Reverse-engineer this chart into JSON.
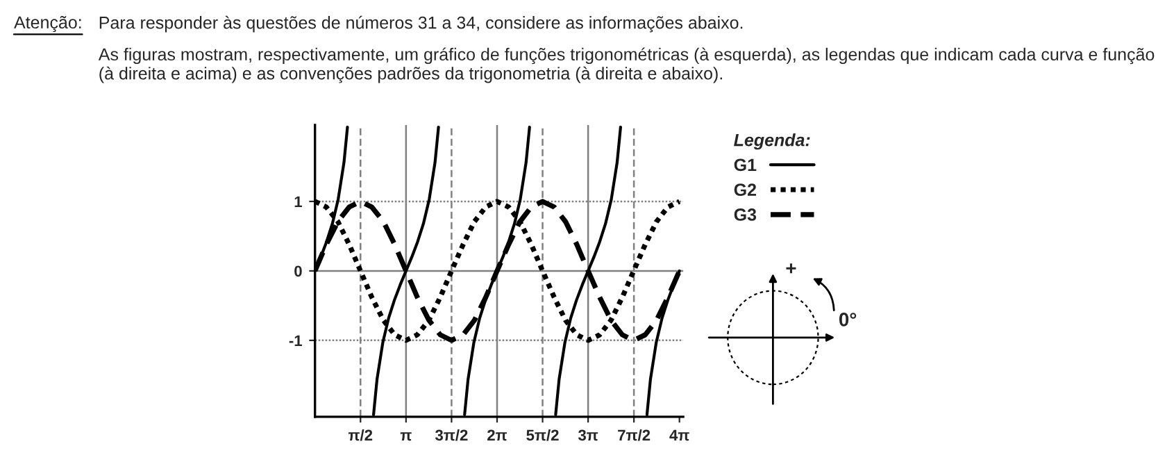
{
  "chart_data": {
    "type": "line",
    "title": "Atenção:",
    "subtitle": "Para responder às questões de números 31 a 34, considere as informações abaixo.",
    "annotations": [
      "As figuras mostram, respectivamente, um gráfico de funções trigonométricas (à esquerda), as legendas que indicam cada curva e função (à direita e acima) e as convenções padrões da trigonometria (à direita e abaixo).",
      "+",
      "0°"
    ],
    "legend_title": "Legenda:",
    "legend": "right",
    "xlim": [
      0,
      12.7
    ],
    "ylim": [
      -2.1,
      2.1
    ],
    "xticks": [
      {
        "value": 1.57,
        "label": "π/2"
      },
      {
        "value": 3.14,
        "label": "π"
      },
      {
        "value": 4.71,
        "label": "3π/2"
      },
      {
        "value": 6.28,
        "label": "2π"
      },
      {
        "value": 7.85,
        "label": "5π/2"
      },
      {
        "value": 9.42,
        "label": "3π"
      },
      {
        "value": 11.0,
        "label": "7π/2"
      },
      {
        "value": 12.57,
        "label": "4π"
      }
    ],
    "yticks": [
      -1,
      0,
      1
    ],
    "ref_lines": [
      {
        "axis": "y",
        "value": 1,
        "color": "#808080",
        "line_style": "dotted"
      },
      {
        "axis": "y",
        "value": -1,
        "color": "#808080",
        "line_style": "dotted"
      },
      {
        "axis": "y",
        "value": 0,
        "color": "#808080",
        "line_style": "solid"
      },
      {
        "axis": "x",
        "value": 1.57,
        "color": "#808080",
        "line_style": "dashed"
      },
      {
        "axis": "x",
        "value": 3.14,
        "color": "#808080",
        "line_style": "solid"
      },
      {
        "axis": "x",
        "value": 4.71,
        "color": "#808080",
        "line_style": "dashed"
      },
      {
        "axis": "x",
        "value": 6.28,
        "color": "#808080",
        "line_style": "solid"
      },
      {
        "axis": "x",
        "value": 7.85,
        "color": "#808080",
        "line_style": "dashed"
      },
      {
        "axis": "x",
        "value": 9.42,
        "color": "#808080",
        "line_style": "solid"
      },
      {
        "axis": "x",
        "value": 11.0,
        "color": "#808080",
        "line_style": "dashed"
      }
    ],
    "series": [
      {
        "name": "G1",
        "color": "#000000",
        "line_style": "solid",
        "x": [
          0,
          0.2,
          0.4,
          0.6,
          0.8,
          1.0,
          1.12,
          1.57,
          2.02,
          2.14,
          2.34,
          2.54,
          2.74,
          2.94,
          3.14,
          3.34,
          3.54,
          3.74,
          3.94,
          4.14,
          4.26,
          4.71,
          5.16,
          5.28,
          5.48,
          5.68,
          5.88,
          6.08,
          6.28,
          6.48,
          6.68,
          6.88,
          7.08,
          7.28,
          7.4,
          7.85,
          8.3,
          8.42,
          8.62,
          8.82,
          9.02,
          9.22,
          9.42,
          9.62,
          9.82,
          10.02,
          10.22,
          10.42,
          10.54,
          11.0,
          11.45,
          11.57,
          11.77,
          11.97,
          12.17,
          12.37,
          12.57
        ],
        "values": [
          0,
          0.2,
          0.42,
          0.68,
          1.03,
          1.56,
          2.07,
          null,
          -2.07,
          -1.56,
          -1.03,
          -0.68,
          -0.42,
          -0.2,
          0,
          0.2,
          0.42,
          0.68,
          1.03,
          1.56,
          2.07,
          null,
          -2.07,
          -1.56,
          -1.03,
          -0.68,
          -0.42,
          -0.2,
          0,
          0.2,
          0.42,
          0.68,
          1.03,
          1.56,
          2.07,
          null,
          -2.07,
          -1.56,
          -1.03,
          -0.68,
          -0.42,
          -0.2,
          0,
          0.2,
          0.42,
          0.68,
          1.03,
          1.56,
          2.07,
          null,
          -2.07,
          -1.56,
          -1.03,
          -0.68,
          -0.42,
          -0.2,
          0
        ]
      },
      {
        "name": "G2",
        "color": "#000000",
        "line_style": "dotted",
        "x": [
          0,
          0.39,
          0.79,
          1.18,
          1.57,
          1.96,
          2.36,
          2.75,
          3.14,
          3.53,
          3.93,
          4.32,
          4.71,
          5.11,
          5.5,
          5.89,
          6.28,
          6.68,
          7.07,
          7.46,
          7.85,
          8.25,
          8.64,
          9.03,
          9.42,
          9.82,
          10.21,
          10.6,
          10.99,
          11.39,
          11.78,
          12.17,
          12.57
        ],
        "values": [
          1,
          0.92,
          0.71,
          0.38,
          0,
          -0.38,
          -0.71,
          -0.92,
          -1,
          -0.92,
          -0.71,
          -0.38,
          0,
          0.38,
          0.71,
          0.92,
          1,
          0.92,
          0.71,
          0.38,
          0,
          -0.38,
          -0.71,
          -0.92,
          -1,
          -0.92,
          -0.71,
          -0.38,
          0,
          0.38,
          0.71,
          0.92,
          1
        ]
      },
      {
        "name": "G3",
        "color": "#000000",
        "line_style": "dashed",
        "x": [
          0,
          0.39,
          0.79,
          1.18,
          1.57,
          1.96,
          2.36,
          2.75,
          3.14,
          3.53,
          3.93,
          4.32,
          4.71,
          5.11,
          5.5,
          5.89,
          6.28,
          6.68,
          7.07,
          7.46,
          7.85,
          8.25,
          8.64,
          9.03,
          9.42,
          9.82,
          10.21,
          10.6,
          10.99,
          11.39,
          11.78,
          12.17,
          12.57
        ],
        "values": [
          0,
          0.38,
          0.71,
          0.92,
          1,
          0.92,
          0.71,
          0.38,
          0,
          -0.38,
          -0.71,
          -0.92,
          -1,
          -0.92,
          -0.71,
          -0.38,
          0,
          0.38,
          0.71,
          0.92,
          1,
          0.92,
          0.71,
          0.38,
          0,
          -0.38,
          -0.71,
          -0.92,
          -1,
          -0.92,
          -0.71,
          -0.38,
          0
        ]
      }
    ]
  }
}
